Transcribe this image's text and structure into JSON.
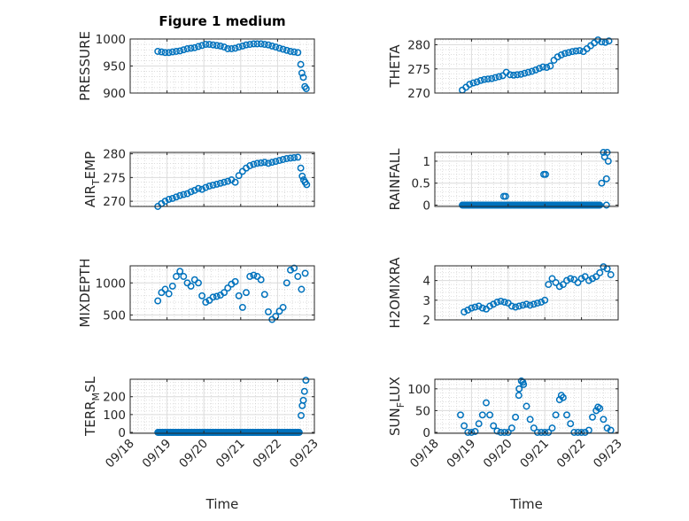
{
  "figure": {
    "title": "Figure 1 medium",
    "xlabel": "Time",
    "marker_color": "#0072BD",
    "x_tick_labels": [
      "09/18",
      "09/19",
      "09/20",
      "09/21",
      "09/22",
      "09/23"
    ]
  },
  "chart_data": [
    {
      "type": "scatter",
      "ylabel": "PRESSURE",
      "xlim": [
        0,
        5
      ],
      "ylim": [
        900,
        1000
      ],
      "yticks": [
        900,
        950,
        1000
      ],
      "series": {
        "x_start": 0.75,
        "x_step": 0.1,
        "y": [
          977,
          976,
          975,
          975,
          976,
          977,
          978,
          980,
          982,
          983,
          984,
          986,
          988,
          990,
          990,
          989,
          988,
          987,
          985,
          982,
          982,
          983,
          985,
          987,
          989,
          990,
          991,
          991,
          991,
          990,
          989,
          987,
          985,
          983,
          981,
          979,
          977,
          976,
          975
        ],
        "extra": [
          [
            4.63,
            953
          ],
          [
            4.66,
            937
          ],
          [
            4.7,
            929
          ],
          [
            4.74,
            912
          ],
          [
            4.78,
            908
          ]
        ]
      }
    },
    {
      "type": "scatter",
      "ylabel": "THETA",
      "xlim": [
        0,
        5
      ],
      "ylim": [
        270,
        281.2
      ],
      "yticks": [
        270,
        275,
        280
      ],
      "series": {
        "x_start": 0.75,
        "x_step": 0.1,
        "y": [
          270.6,
          271.2,
          271.8,
          272.1,
          272.3,
          272.6,
          272.8,
          272.9,
          273.0,
          273.2,
          273.4,
          273.6,
          274.3,
          273.8,
          273.7,
          273.8,
          273.9,
          274.1,
          274.3,
          274.5,
          274.8,
          275.1,
          275.4,
          275.3,
          275.6,
          276.8,
          277.5,
          277.9,
          278.2,
          278.4,
          278.6,
          278.7,
          278.8,
          278.6,
          279.2,
          279.8,
          280.4,
          281.0,
          280.6,
          280.5,
          280.8
        ],
        "extra": []
      }
    },
    {
      "type": "scatter",
      "ylabel": "AIR_TEMP",
      "xlim": [
        0,
        5
      ],
      "ylim": [
        268.9,
        280.3
      ],
      "yticks": [
        270,
        275,
        280
      ],
      "series": {
        "x_start": 0.75,
        "x_step": 0.1,
        "y": [
          268.9,
          269.5,
          270.0,
          270.4,
          270.6,
          270.9,
          271.2,
          271.4,
          271.6,
          272.0,
          272.3,
          272.7,
          272.5,
          272.9,
          273.2,
          273.4,
          273.6,
          273.8,
          274.0,
          274.2,
          274.5,
          274.0,
          275.4,
          276.3,
          277.0,
          277.5,
          277.8,
          278.0,
          278.1,
          278.2,
          278.0,
          278.2,
          278.4,
          278.6,
          278.8,
          279.0,
          279.1,
          279.2,
          279.3
        ],
        "extra": [
          [
            4.63,
            277
          ],
          [
            4.67,
            275.3
          ],
          [
            4.71,
            274.5
          ],
          [
            4.75,
            274
          ],
          [
            4.79,
            273.5
          ]
        ]
      }
    },
    {
      "type": "scatter",
      "ylabel": "RAINFALL",
      "xlim": [
        0,
        5
      ],
      "ylim": [
        -0.03,
        1.2
      ],
      "yticks": [
        0,
        0.5,
        1
      ],
      "series": {
        "x_start": 0.75,
        "x_step": 0.03,
        "zero_run_end": 4.5,
        "y": [],
        "extra": [
          [
            1.88,
            0.2
          ],
          [
            1.93,
            0.2
          ],
          [
            2.97,
            0.7
          ],
          [
            3.02,
            0.7
          ],
          [
            4.55,
            0.5
          ],
          [
            4.6,
            1.2
          ],
          [
            4.63,
            1.1
          ],
          [
            4.68,
            0.6
          ],
          [
            4.7,
            1.2
          ],
          [
            4.73,
            1.0
          ],
          [
            4.68,
            0
          ]
        ]
      }
    },
    {
      "type": "scatter",
      "ylabel": "MIXDEPTH",
      "xlim": [
        0,
        5
      ],
      "ylim": [
        425,
        1266
      ],
      "yticks": [
        500,
        1000
      ],
      "series": {
        "x_start": 0.75,
        "x_step": 0.1,
        "y": [
          720,
          850,
          900,
          830,
          950,
          1100,
          1180,
          1100,
          1000,
          950,
          1050,
          1000,
          800,
          700,
          730,
          780,
          790,
          810,
          850,
          920,
          980,
          1020,
          800,
          620,
          850,
          1100,
          1120,
          1100,
          1050,
          820,
          550,
          430,
          480,
          560,
          620,
          1000,
          1200,
          1230,
          1100,
          900,
          1150
        ],
        "extra": []
      }
    },
    {
      "type": "scatter",
      "ylabel": "H2OMIXRA",
      "xlim": [
        0,
        5
      ],
      "ylim": [
        2,
        4.75
      ],
      "yticks": [
        2,
        3,
        4
      ],
      "series": {
        "x_start": 0.8,
        "x_step": 0.1,
        "y": [
          2.4,
          2.5,
          2.6,
          2.65,
          2.7,
          2.6,
          2.55,
          2.7,
          2.8,
          2.9,
          2.95,
          2.9,
          2.85,
          2.7,
          2.65,
          2.7,
          2.75,
          2.8,
          2.75,
          2.8,
          2.85,
          2.9,
          3.0,
          3.8,
          4.1,
          3.9,
          3.7,
          3.8,
          4.0,
          4.1,
          4.05,
          3.9,
          4.1,
          4.2,
          4.0,
          4.1,
          4.2,
          4.4,
          4.7,
          4.6,
          4.3
        ],
        "extra": []
      }
    },
    {
      "type": "scatter",
      "ylabel": "TERR_MSL",
      "xlim": [
        0,
        5
      ],
      "ylim": [
        -5,
        298
      ],
      "yticks": [
        0,
        100,
        200
      ],
      "series": {
        "x_start": 0.75,
        "x_step": 0.03,
        "zero_run_end": 4.6,
        "y": [],
        "extra": [
          [
            4.64,
            95
          ],
          [
            4.67,
            150
          ],
          [
            4.7,
            180
          ],
          [
            4.73,
            230
          ],
          [
            4.77,
            292
          ]
        ]
      }
    },
    {
      "type": "scatter",
      "ylabel": "SUN_FLUX",
      "xlim": [
        0,
        5
      ],
      "ylim": [
        -2,
        122
      ],
      "yticks": [
        0,
        50,
        100
      ],
      "series": {
        "x_start": 0.7,
        "x_step": 0.1,
        "y": [
          40,
          15,
          0,
          0,
          2,
          20,
          40,
          68,
          40,
          15,
          3,
          0,
          0,
          0,
          10,
          35,
          100,
          115,
          60,
          30,
          10,
          0,
          0,
          0,
          0,
          10,
          40,
          75,
          80,
          40,
          20,
          0,
          0,
          0,
          0,
          5,
          35,
          50,
          55,
          30,
          10,
          5
        ],
        "extra": [
          [
            2.29,
            85
          ],
          [
            2.36,
            118
          ],
          [
            2.42,
            110
          ],
          [
            3.45,
            85
          ],
          [
            4.45,
            58
          ]
        ]
      }
    }
  ]
}
